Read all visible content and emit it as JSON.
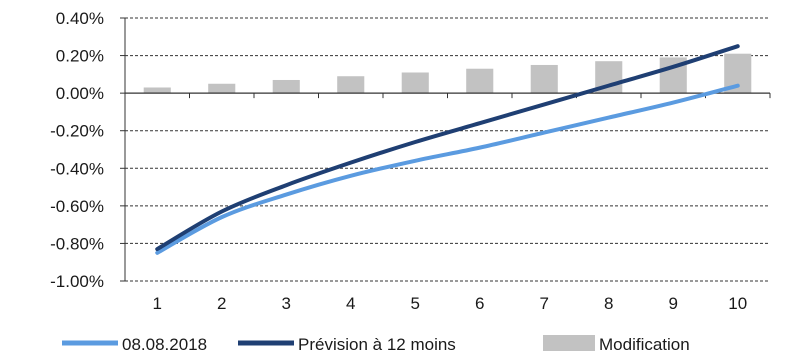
{
  "chart_data": {
    "type": "line",
    "categories": [
      "1",
      "2",
      "3",
      "4",
      "5",
      "6",
      "7",
      "8",
      "9",
      "10"
    ],
    "ylim": [
      -1.0,
      0.4
    ],
    "yticks": [
      0.4,
      0.2,
      0.0,
      -0.2,
      -0.4,
      -0.6,
      -0.8,
      -1.0
    ],
    "ytick_labels": [
      "0.40%",
      "0.20%",
      "0.00%",
      "-0.20%",
      "-0.40%",
      "-0.60%",
      "-0.80%",
      "-1.00%"
    ],
    "grid": "horizontal dashed",
    "legend_position": "bottom",
    "series": [
      {
        "name": "08.08.2018",
        "kind": "line",
        "color": "#5b9be0",
        "values": [
          -0.85,
          -0.66,
          -0.54,
          -0.44,
          -0.36,
          -0.29,
          -0.21,
          -0.13,
          -0.05,
          0.04
        ]
      },
      {
        "name": "Prévision à 12 moins",
        "kind": "line",
        "color": "#1f3f73",
        "values": [
          -0.83,
          -0.63,
          -0.49,
          -0.37,
          -0.26,
          -0.16,
          -0.06,
          0.04,
          0.14,
          0.25
        ]
      },
      {
        "name": "Modification",
        "kind": "bar",
        "color": "#c2c2c2",
        "values": [
          0.03,
          0.05,
          0.07,
          0.09,
          0.11,
          0.13,
          0.15,
          0.17,
          0.19,
          0.21
        ]
      }
    ]
  }
}
